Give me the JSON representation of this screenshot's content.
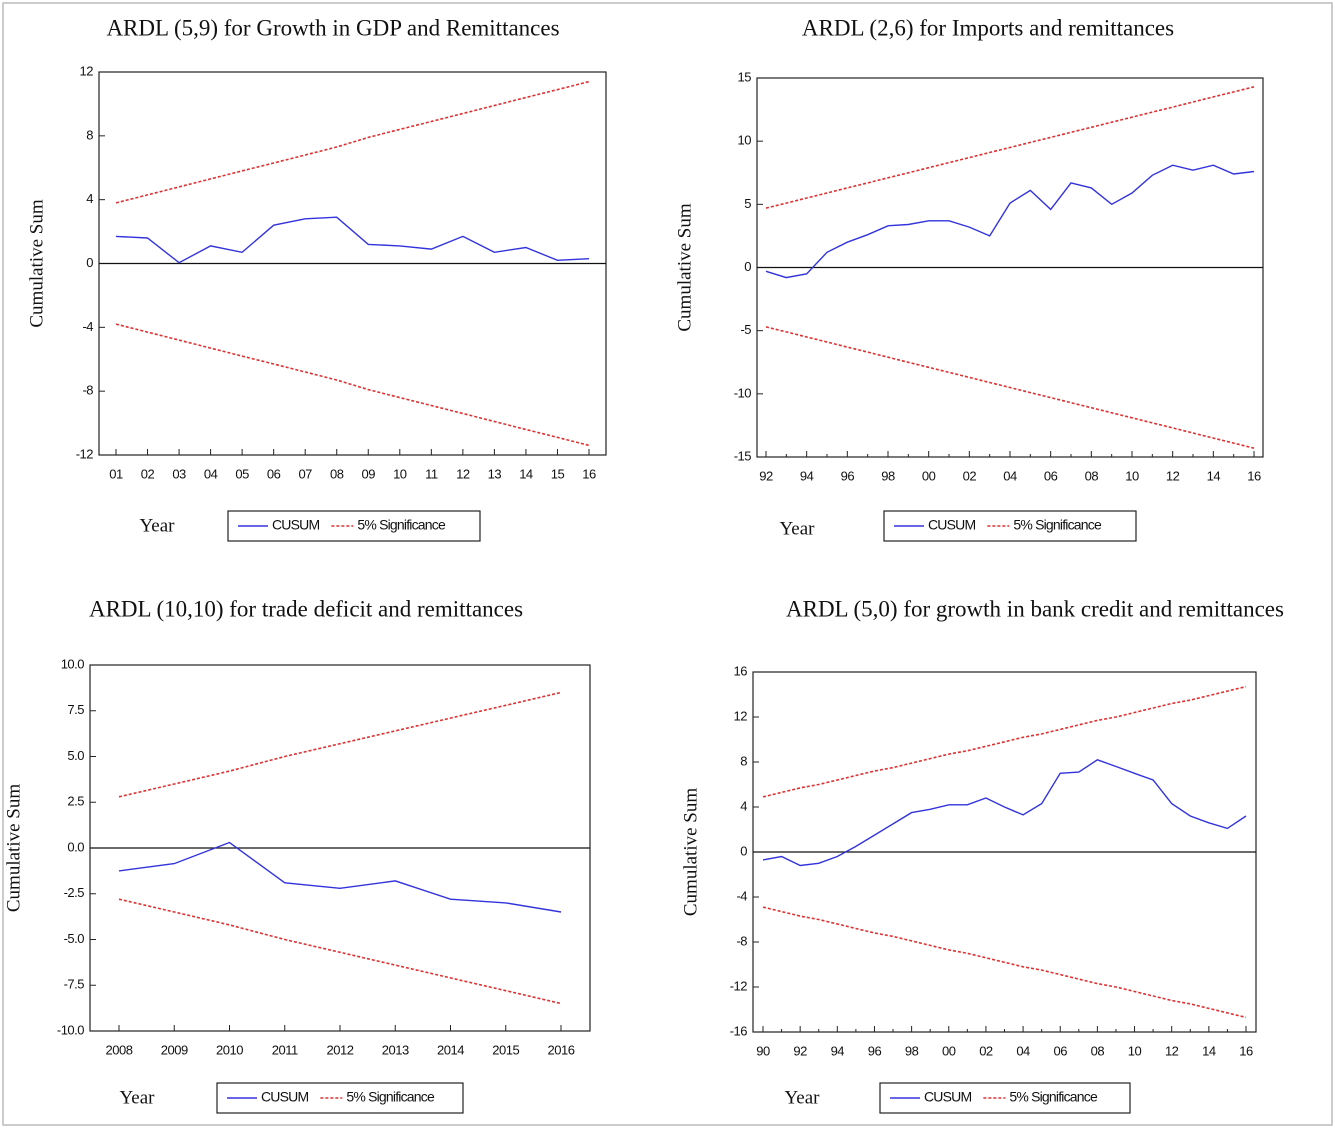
{
  "chart_data": [
    {
      "type": "line",
      "title": "ARDL (5,9) for Growth in GDP and Remittances",
      "xlabel": "Year",
      "ylabel": "Cumulative Sum",
      "categories": [
        "01",
        "02",
        "03",
        "04",
        "05",
        "06",
        "07",
        "08",
        "09",
        "10",
        "11",
        "12",
        "13",
        "14",
        "15",
        "16"
      ],
      "series": [
        {
          "name": "CUSUM",
          "color": "#3333dd",
          "values": [
            1.7,
            1.6,
            0.05,
            1.1,
            0.7,
            2.4,
            2.8,
            2.9,
            1.2,
            1.1,
            0.9,
            1.7,
            0.7,
            1.0,
            0.2,
            0.3
          ]
        },
        {
          "name": "5% Significance",
          "color": "#e03030",
          "dashed": true,
          "values": [
            3.8,
            4.3,
            4.8,
            5.3,
            5.8,
            6.3,
            6.8,
            7.3,
            7.9,
            8.4,
            8.9,
            9.4,
            9.9,
            10.4,
            10.9,
            11.4
          ],
          "lower": [
            -3.8,
            -4.3,
            -4.8,
            -5.3,
            -5.8,
            -6.3,
            -6.8,
            -7.3,
            -7.9,
            -8.4,
            -8.9,
            -9.4,
            -9.9,
            -10.4,
            -10.9,
            -11.4
          ]
        }
      ],
      "ylim": [
        -12,
        12
      ],
      "yticks": [
        -12,
        -8,
        -4,
        0,
        4,
        8,
        12
      ]
    },
    {
      "type": "line",
      "title": "ARDL (2,6) for Imports and remittances",
      "xlabel": "Year",
      "ylabel": "Cumulative Sum",
      "categories": [
        "92",
        null,
        "94",
        null,
        "96",
        null,
        "98",
        null,
        "00",
        null,
        "02",
        null,
        "04",
        null,
        "06",
        null,
        "08",
        null,
        "10",
        null,
        "12",
        null,
        "14",
        null,
        "16"
      ],
      "series": [
        {
          "name": "CUSUM",
          "color": "#3333dd",
          "values": [
            -0.3,
            -0.8,
            -0.5,
            1.2,
            2.0,
            2.6,
            3.3,
            3.4,
            3.7,
            3.7,
            3.2,
            2.5,
            5.1,
            6.1,
            4.6,
            6.7,
            6.3,
            5.0,
            5.9,
            7.3,
            8.1,
            7.7,
            8.1,
            7.4,
            7.6
          ]
        },
        {
          "name": "5% Significance",
          "color": "#e03030",
          "dashed": true,
          "values": [
            4.7,
            5.1,
            5.5,
            5.9,
            6.3,
            6.7,
            7.1,
            7.5,
            7.9,
            8.3,
            8.7,
            9.1,
            9.5,
            9.9,
            10.3,
            10.7,
            11.1,
            11.5,
            11.9,
            12.3,
            12.7,
            13.1,
            13.5,
            13.9,
            14.3
          ],
          "lower": [
            -4.7,
            -5.1,
            -5.5,
            -5.9,
            -6.3,
            -6.7,
            -7.1,
            -7.5,
            -7.9,
            -8.3,
            -8.7,
            -9.1,
            -9.5,
            -9.9,
            -10.3,
            -10.7,
            -11.1,
            -11.5,
            -11.9,
            -12.3,
            -12.7,
            -13.1,
            -13.5,
            -13.9,
            -14.3
          ]
        }
      ],
      "ylim": [
        -15,
        15
      ],
      "yticks": [
        -15,
        -10,
        -5,
        0,
        5,
        10,
        15
      ]
    },
    {
      "type": "line",
      "title": "ARDL (10,10) for trade deficit and remittances",
      "xlabel": "Year",
      "ylabel": "Cumulative Sum",
      "categories": [
        "2008",
        "2009",
        "2010",
        "2011",
        "2012",
        "2013",
        "2014",
        "2015",
        "2016"
      ],
      "series": [
        {
          "name": "CUSUM",
          "color": "#3333dd",
          "values": [
            -1.25,
            -0.85,
            0.3,
            -1.9,
            -2.2,
            -1.8,
            -2.8,
            -3.0,
            -3.5
          ]
        },
        {
          "name": "5% Significance",
          "color": "#e03030",
          "dashed": true,
          "values": [
            2.8,
            3.5,
            4.2,
            5.0,
            5.7,
            6.4,
            7.1,
            7.8,
            8.5
          ],
          "lower": [
            -2.8,
            -3.5,
            -4.2,
            -5.0,
            -5.7,
            -6.4,
            -7.1,
            -7.8,
            -8.5
          ]
        }
      ],
      "ylim": [
        -10,
        10
      ],
      "yticks": [
        {
          "value": -10,
          "label": "-10.0"
        },
        {
          "value": -7.5,
          "label": "-7.5"
        },
        {
          "value": -5,
          "label": "-5.0"
        },
        {
          "value": -2.5,
          "label": "-2.5"
        },
        {
          "value": 0,
          "label": "0.0"
        },
        2.5,
        {
          "value": 5,
          "label": "5.0"
        },
        7.5,
        {
          "value": 10,
          "label": "10.0"
        }
      ]
    },
    {
      "type": "line",
      "title": "ARDL (5,0) for growth in bank credit and remittances",
      "xlabel": "Year",
      "ylabel": "Cumulative Sum",
      "categories": [
        "90",
        null,
        "92",
        null,
        "94",
        null,
        "96",
        null,
        "98",
        null,
        "00",
        null,
        "02",
        null,
        "04",
        null,
        "06",
        null,
        "08",
        null,
        "10",
        null,
        "12",
        null,
        "14",
        null,
        "16"
      ],
      "series": [
        {
          "name": "CUSUM",
          "color": "#3333dd",
          "values": [
            -0.7,
            -0.4,
            -1.2,
            -1.0,
            -0.4,
            0.5,
            1.5,
            2.5,
            3.5,
            3.8,
            4.2,
            4.2,
            4.8,
            4.0,
            3.3,
            4.3,
            7.0,
            7.1,
            8.2,
            7.6,
            7.0,
            6.4,
            4.3,
            3.2,
            2.6,
            2.1,
            3.2
          ]
        },
        {
          "name": "5% Significance",
          "color": "#e03030",
          "dashed": true,
          "values": [
            4.9,
            5.3,
            5.7,
            6.0,
            6.4,
            6.8,
            7.2,
            7.5,
            7.9,
            8.3,
            8.7,
            9.0,
            9.4,
            9.8,
            10.2,
            10.5,
            10.9,
            11.3,
            11.7,
            12.0,
            12.4,
            12.8,
            13.2,
            13.5,
            13.9,
            14.3,
            14.7
          ],
          "lower": [
            -4.9,
            -5.3,
            -5.7,
            -6.0,
            -6.4,
            -6.8,
            -7.2,
            -7.5,
            -7.9,
            -8.3,
            -8.7,
            -9.0,
            -9.4,
            -9.8,
            -10.2,
            -10.5,
            -10.9,
            -11.3,
            -11.7,
            -12.0,
            -12.4,
            -12.8,
            -13.2,
            -13.5,
            -13.9,
            -14.3,
            -14.7
          ]
        }
      ],
      "ylim": [
        -16,
        16
      ],
      "yticks": [
        -16,
        -12,
        -8,
        -4,
        0,
        4,
        8,
        12,
        16
      ]
    }
  ]
}
